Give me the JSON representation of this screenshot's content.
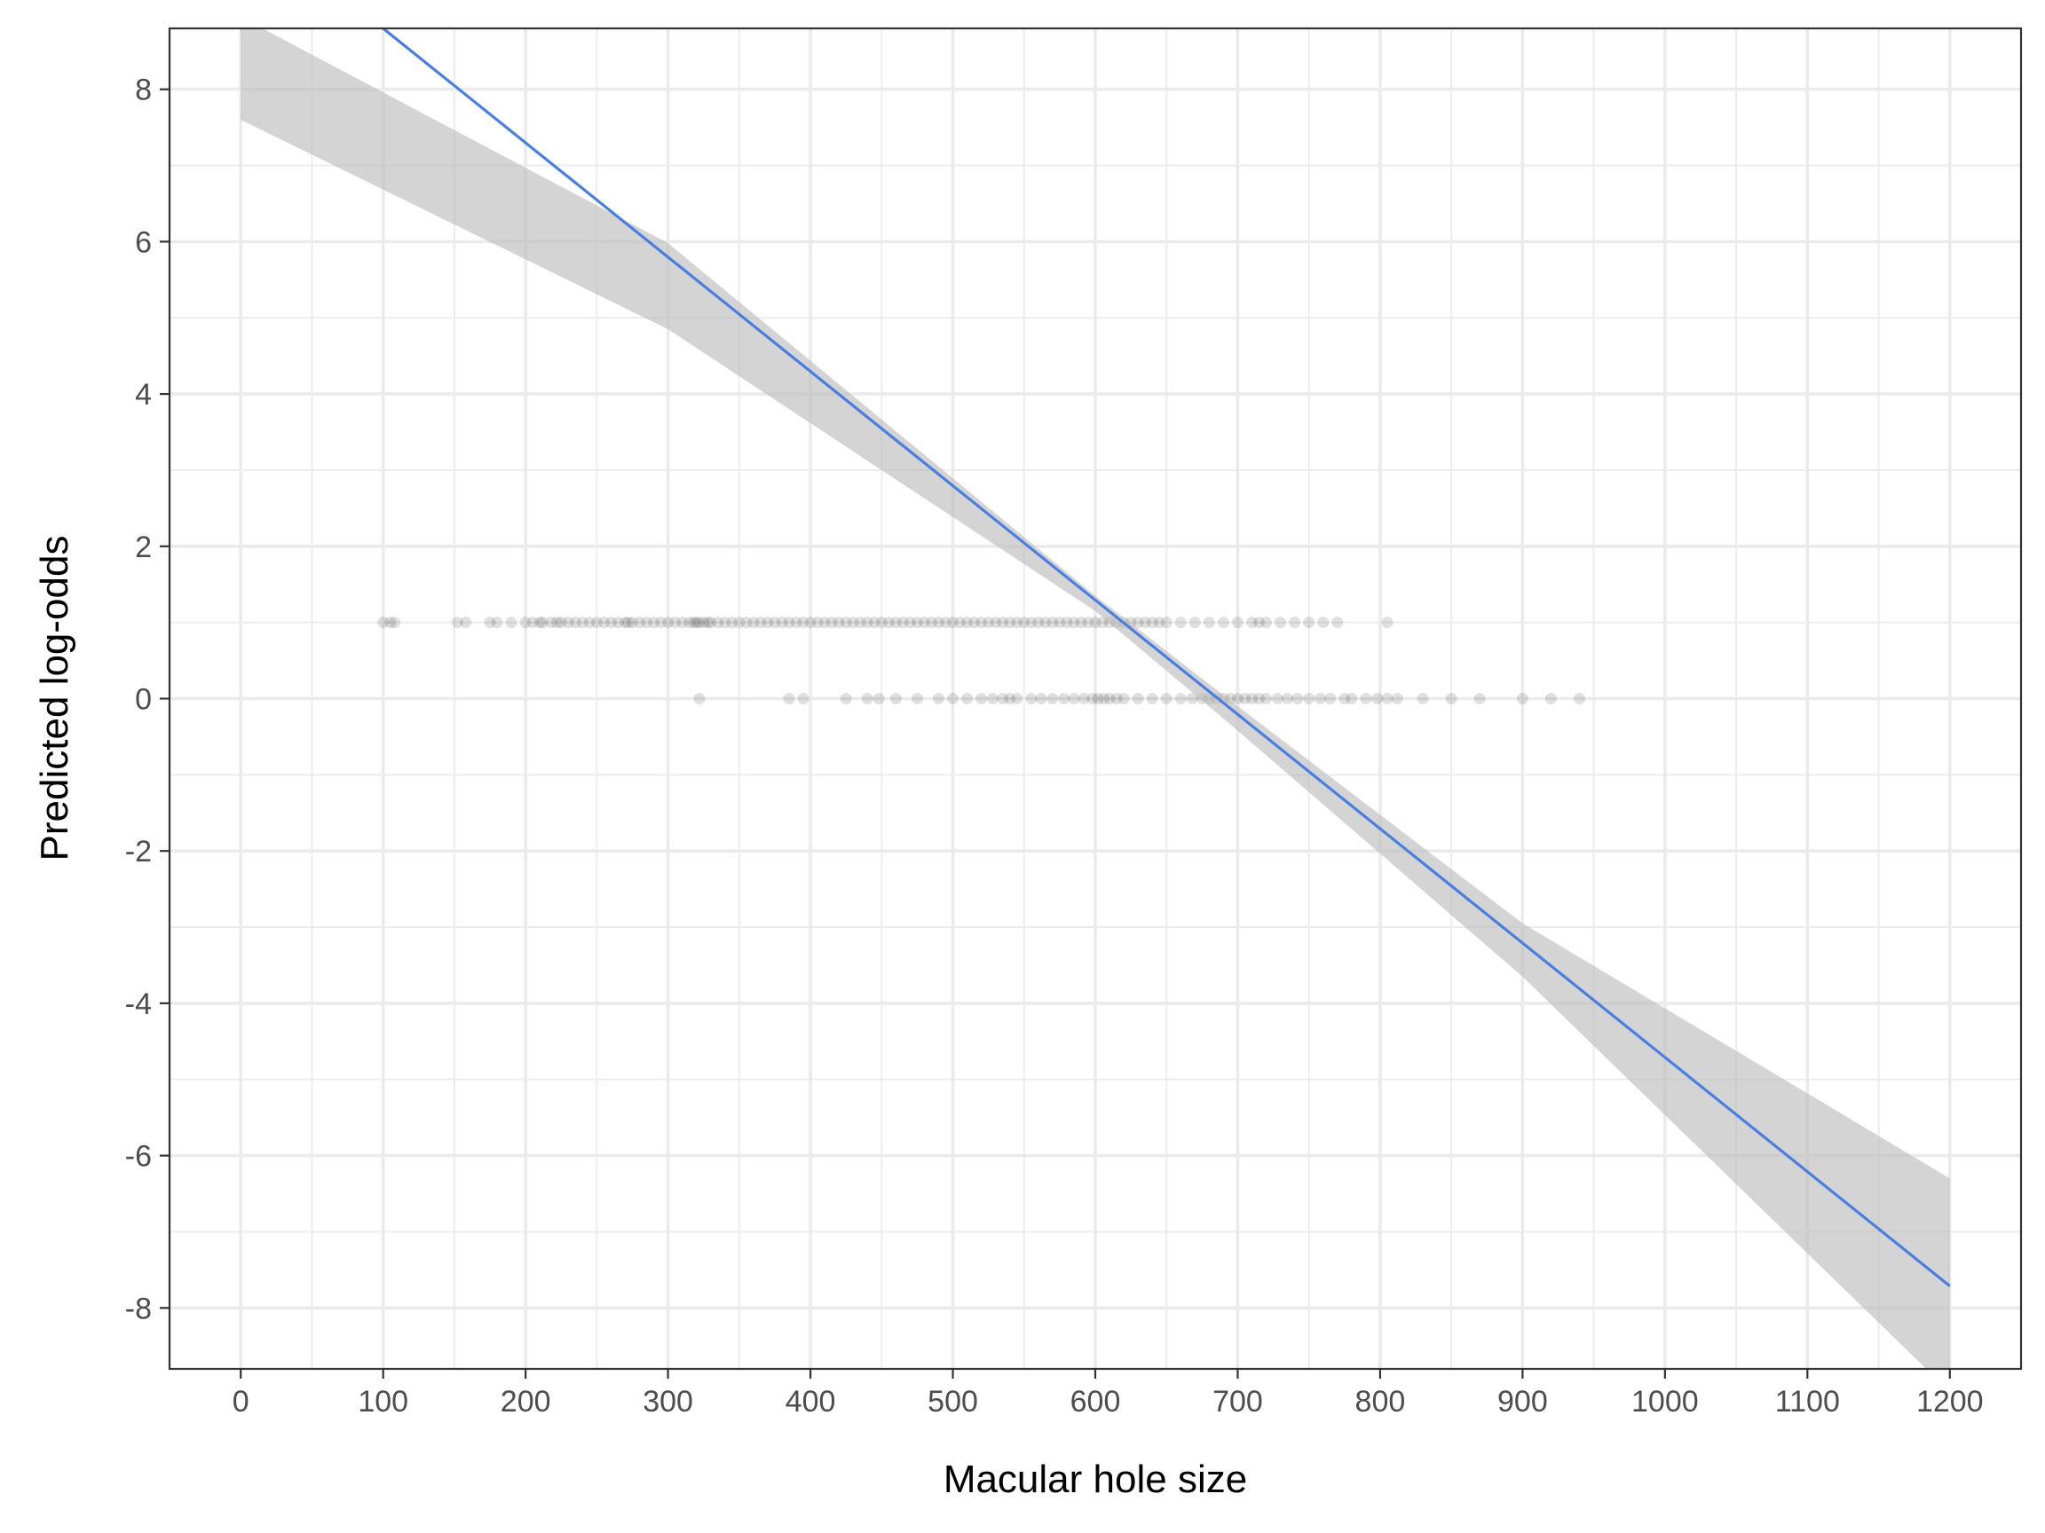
{
  "chart_data": {
    "type": "scatter",
    "title": "",
    "xlabel": "Macular hole size",
    "ylabel": "Predicted log-odds",
    "xlim": [
      -50,
      1250
    ],
    "ylim": [
      -8.8,
      8.8
    ],
    "x_ticks": [
      0,
      100,
      200,
      300,
      400,
      500,
      600,
      700,
      800,
      900,
      1000,
      1100,
      1200
    ],
    "y_ticks": [
      -8,
      -6,
      -4,
      -2,
      0,
      2,
      4,
      6,
      8
    ],
    "grid": true,
    "legend": "none",
    "colors": {
      "fit_line": "#4a7fe0",
      "ribbon": "#bdbdbd",
      "points": "#000000",
      "grid": "#ebebeb",
      "panel_border": "#333333"
    },
    "fit": {
      "intercept": 10.3,
      "slope": -0.01501,
      "x_range": [
        100,
        1200
      ],
      "ci_upper": [
        [
          0,
          8.95
        ],
        [
          300,
          5.98
        ],
        [
          600,
          1.35
        ],
        [
          700,
          -0.1
        ],
        [
          900,
          -2.95
        ],
        [
          1200,
          -6.3
        ]
      ],
      "ci_lower": [
        [
          0,
          7.6
        ],
        [
          300,
          4.85
        ],
        [
          600,
          1.15
        ],
        [
          700,
          -0.42
        ],
        [
          900,
          -3.65
        ],
        [
          1200,
          -9.1
        ]
      ]
    },
    "series": [
      {
        "y": 1,
        "x": [
          100,
          105,
          108,
          152,
          158,
          175,
          180,
          190,
          200,
          205,
          210,
          212,
          218,
          222,
          225,
          230,
          235,
          240,
          245,
          250,
          255,
          260,
          265,
          270,
          272,
          275,
          280,
          285,
          290,
          295,
          300,
          305,
          310,
          315,
          318,
          320,
          322,
          325,
          328,
          330,
          335,
          340,
          345,
          350,
          355,
          360,
          365,
          370,
          375,
          380,
          385,
          390,
          395,
          400,
          405,
          410,
          415,
          420,
          425,
          430,
          435,
          440,
          445,
          450,
          455,
          460,
          465,
          470,
          475,
          480,
          485,
          490,
          495,
          500,
          505,
          510,
          515,
          520,
          525,
          530,
          535,
          540,
          545,
          550,
          555,
          560,
          565,
          570,
          575,
          580,
          585,
          590,
          595,
          600,
          605,
          610,
          615,
          620,
          625,
          630,
          635,
          640,
          645,
          650,
          660,
          670,
          680,
          690,
          700,
          710,
          715,
          720,
          730,
          740,
          750,
          760,
          770,
          805
        ]
      },
      {
        "y": 0,
        "x": [
          322,
          385,
          395,
          425,
          440,
          448,
          460,
          475,
          490,
          500,
          510,
          520,
          528,
          535,
          540,
          545,
          555,
          562,
          570,
          578,
          585,
          592,
          598,
          602,
          606,
          610,
          615,
          620,
          630,
          640,
          650,
          660,
          668,
          675,
          680,
          685,
          690,
          695,
          700,
          705,
          710,
          715,
          720,
          728,
          735,
          742,
          750,
          758,
          765,
          775,
          780,
          790,
          798,
          805,
          812,
          830,
          850,
          870,
          900,
          920,
          940
        ]
      }
    ]
  }
}
